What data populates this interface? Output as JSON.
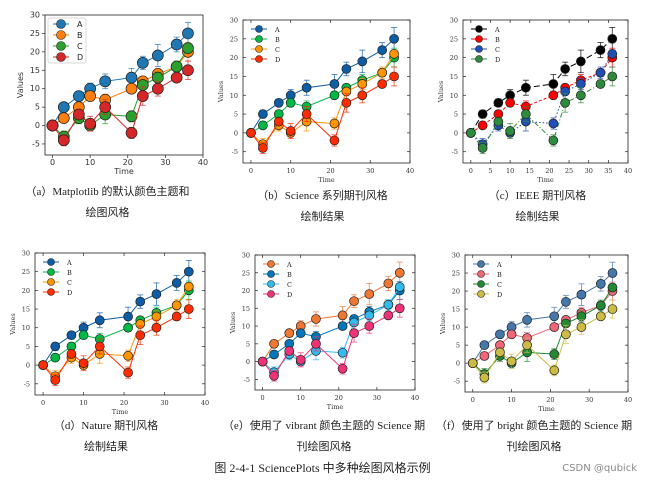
{
  "figure_caption": "图 2-4-1    SciencePlots 中多种绘图风格示例",
  "watermark": "CSDN @qubick",
  "chart_data": [
    {
      "id": "a",
      "type": "line",
      "style": "matplotlib",
      "caption_1": "（a）Matplotlib 的默认颜色主题和",
      "caption_2": "绘图风格",
      "xlabel": "Time",
      "ylabel": "Values",
      "xlim": [
        -2,
        40
      ],
      "ylim": [
        -8,
        30
      ],
      "xticks": [
        0,
        10,
        20,
        30,
        40
      ],
      "yticks": [
        -5,
        0,
        5,
        10,
        15,
        20,
        25,
        30
      ],
      "grid": false,
      "legend": "top-left",
      "colors": [
        "#1f77b4",
        "#ff7f0e",
        "#2ca02c",
        "#d62728"
      ],
      "dashed": false
    },
    {
      "id": "b",
      "type": "line",
      "style": "science",
      "caption_1": "（b）Science 系列期刊风格",
      "caption_2": "绘制结果",
      "xlabel": "Time",
      "ylabel": "Values",
      "xlim": [
        -2,
        40
      ],
      "ylim": [
        -8,
        30
      ],
      "xticks": [
        0,
        10,
        20,
        30,
        40
      ],
      "yticks": [
        -5,
        0,
        5,
        10,
        15,
        20,
        25,
        30
      ],
      "grid": false,
      "legend": "top-left",
      "colors": [
        "#0C5DA5",
        "#00B945",
        "#FF9500",
        "#FF2C00"
      ],
      "dashed": false
    },
    {
      "id": "c",
      "type": "line",
      "style": "ieee",
      "caption_1": "（c）IEEE 期刊风格",
      "caption_2": "绘制结果",
      "xlabel": "Time",
      "ylabel": "Values",
      "xlim": [
        -2,
        40
      ],
      "ylim": [
        -8,
        30
      ],
      "xticks": [
        0,
        5,
        10,
        15,
        20,
        25,
        30,
        35,
        40
      ],
      "yticks": [
        -5,
        0,
        5,
        10,
        15,
        20,
        25,
        30
      ],
      "grid": false,
      "legend": "top-left",
      "colors": [
        "#000000",
        "#ff0000",
        "#1f4fb4",
        "#2e8b3e"
      ],
      "dashed": true
    },
    {
      "id": "d",
      "type": "line",
      "style": "nature",
      "caption_1": "（d）Nature 期刊风格",
      "caption_2": "绘制结果",
      "xlabel": "Time",
      "ylabel": "Values",
      "xlim": [
        -2,
        40
      ],
      "ylim": [
        -8,
        30
      ],
      "xticks": [
        0,
        10,
        20,
        30,
        40
      ],
      "yticks": [
        -5,
        0,
        5,
        10,
        15,
        20,
        25,
        30
      ],
      "grid": false,
      "legend": "top-left",
      "colors": [
        "#0C5DA5",
        "#00B945",
        "#FF9500",
        "#FF2C00"
      ],
      "dashed": false
    },
    {
      "id": "e",
      "type": "line",
      "style": "science-vibrant",
      "caption_1": "（e）使用了 vibrant 颜色主题的 Science 期",
      "caption_2": "刊绘图风格",
      "xlabel": "Time",
      "ylabel": "Values",
      "xlim": [
        -2,
        40
      ],
      "ylim": [
        -8,
        30
      ],
      "xticks": [
        0,
        10,
        20,
        30,
        40
      ],
      "yticks": [
        -5,
        0,
        5,
        10,
        15,
        20,
        25,
        30
      ],
      "grid": false,
      "legend": "top-left",
      "colors": [
        "#EE7733",
        "#0077BB",
        "#33BBEE",
        "#EE3377"
      ],
      "dashed": false
    },
    {
      "id": "f",
      "type": "line",
      "style": "science-bright",
      "caption_1": "（f）使用了 bright 颜色主题的 Science 期",
      "caption_2": "刊绘图风格",
      "xlabel": "Time",
      "ylabel": "Values",
      "xlim": [
        -2,
        40
      ],
      "ylim": [
        -8,
        30
      ],
      "xticks": [
        0,
        10,
        20,
        30,
        40
      ],
      "yticks": [
        -5,
        0,
        5,
        10,
        15,
        20,
        25,
        30
      ],
      "grid": false,
      "legend": "top-left",
      "colors": [
        "#4477AA",
        "#EE6677",
        "#228833",
        "#CCBB44"
      ],
      "dashed": false
    }
  ],
  "series_data": {
    "x": [
      0,
      3,
      7,
      10,
      14,
      21,
      24,
      28,
      33,
      36
    ],
    "series": [
      {
        "name": "A",
        "values": [
          0,
          5,
          8,
          10,
          12,
          13,
          17,
          19,
          22,
          25
        ],
        "errors": [
          0,
          1,
          1,
          1.5,
          2,
          2.5,
          1.8,
          3,
          2,
          3
        ]
      },
      {
        "name": "B",
        "values": [
          0,
          2,
          5,
          8,
          7,
          10,
          12,
          14,
          16,
          20
        ],
        "errors": [
          0,
          1,
          1,
          1,
          1.5,
          1,
          1,
          1.5,
          1,
          2.5
        ]
      },
      {
        "name": "C",
        "values": [
          0,
          -3,
          2,
          0,
          3,
          2.5,
          11,
          13,
          16,
          21
        ],
        "errors": [
          0,
          1.5,
          1.5,
          1,
          2.5,
          1.5,
          1,
          1.5,
          1.5,
          1
        ]
      },
      {
        "name": "D",
        "values": [
          0,
          -4,
          3,
          0.5,
          5,
          -2,
          8,
          10,
          13,
          15
        ],
        "errors": [
          0,
          1.5,
          1,
          2,
          2,
          1.5,
          2.5,
          2,
          1,
          2.5
        ]
      }
    ]
  }
}
